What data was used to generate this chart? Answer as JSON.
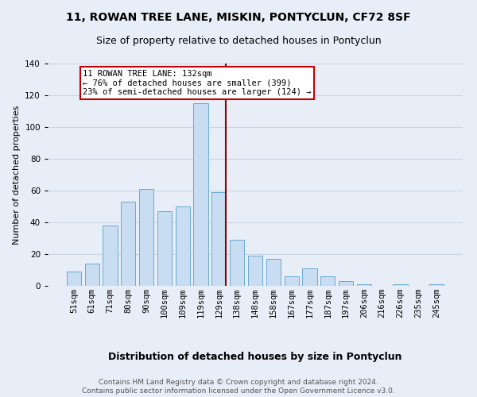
{
  "title": "11, ROWAN TREE LANE, MISKIN, PONTYCLUN, CF72 8SF",
  "subtitle": "Size of property relative to detached houses in Pontyclun",
  "xlabel": "Distribution of detached houses by size in Pontyclun",
  "ylabel": "Number of detached properties",
  "bar_labels": [
    "51sqm",
    "61sqm",
    "71sqm",
    "80sqm",
    "90sqm",
    "100sqm",
    "109sqm",
    "119sqm",
    "129sqm",
    "138sqm",
    "148sqm",
    "158sqm",
    "167sqm",
    "177sqm",
    "187sqm",
    "197sqm",
    "206sqm",
    "216sqm",
    "226sqm",
    "235sqm",
    "245sqm"
  ],
  "bar_values": [
    9,
    14,
    38,
    53,
    61,
    47,
    50,
    115,
    59,
    29,
    19,
    17,
    6,
    11,
    6,
    3,
    1,
    0,
    1,
    0,
    1
  ],
  "bar_color": "#c9ddf2",
  "bar_edge_color": "#6aaad4",
  "bar_width": 0.8,
  "vline_x_index": 8.38,
  "vline_color": "#8b0000",
  "ylim": [
    0,
    140
  ],
  "yticks": [
    0,
    20,
    40,
    60,
    80,
    100,
    120,
    140
  ],
  "annotation_text": "11 ROWAN TREE LANE: 132sqm\n← 76% of detached houses are smaller (399)\n23% of semi-detached houses are larger (124) →",
  "annotation_box_color": "#ffffff",
  "annotation_box_edge": "#c00000",
  "grid_color": "#c8d4e8",
  "background_color": "#e8eef8",
  "footnote": "Contains HM Land Registry data © Crown copyright and database right 2024.\nContains public sector information licensed under the Open Government Licence v3.0.",
  "title_fontsize": 10,
  "subtitle_fontsize": 9,
  "xlabel_fontsize": 9,
  "ylabel_fontsize": 8,
  "tick_fontsize": 7.5,
  "annotation_fontsize": 7.5,
  "footnote_fontsize": 6.5
}
